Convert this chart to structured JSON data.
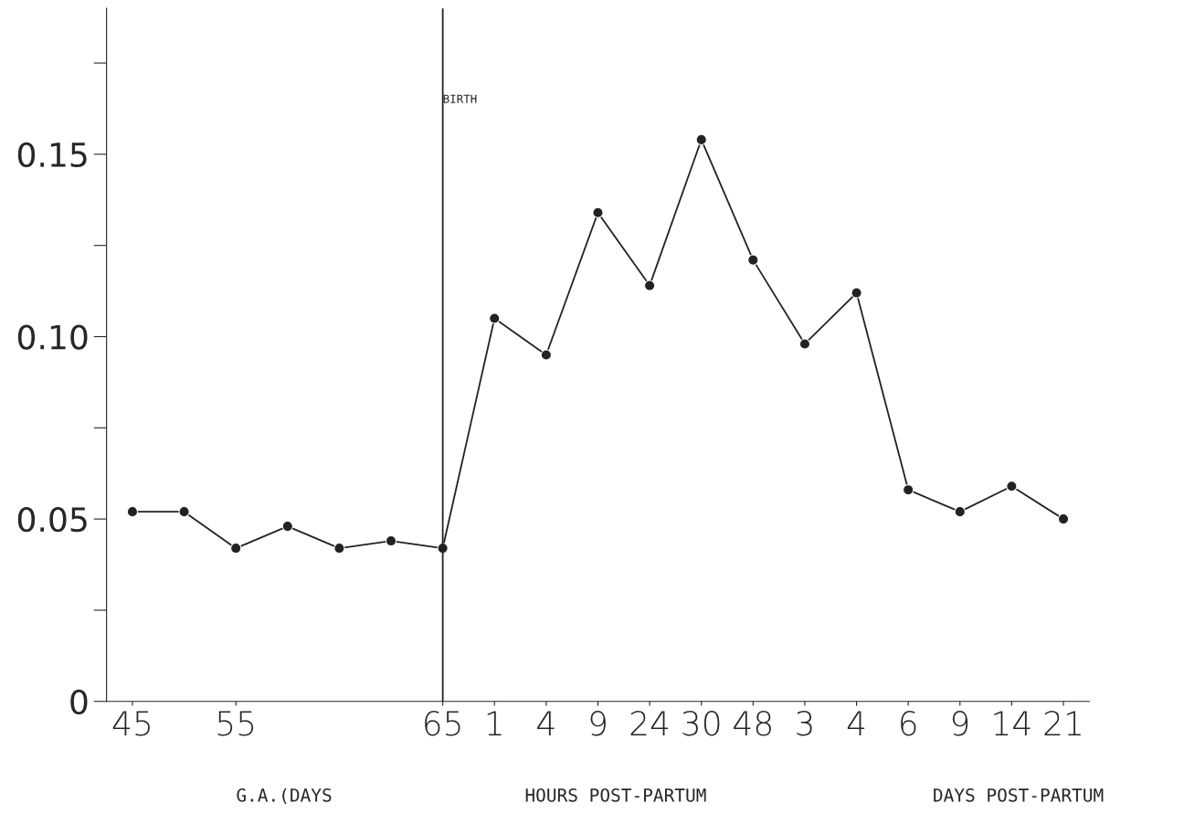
{
  "chart_data": {
    "type": "line",
    "categories": [
      "45",
      null,
      "55",
      null,
      null,
      null,
      "65",
      "1",
      "4",
      "9",
      "24",
      "30",
      "48",
      "3",
      "4",
      "6",
      "9",
      "14",
      "21"
    ],
    "series": [
      {
        "color": "#222222",
        "values": [
          0.052,
          0.052,
          0.042,
          0.048,
          0.042,
          0.044,
          0.042,
          0.105,
          0.095,
          0.134,
          0.114,
          0.154,
          0.121,
          0.098,
          0.112,
          0.058,
          0.052,
          0.059,
          0.05
        ]
      }
    ],
    "ylim": [
      0,
      0.19
    ],
    "yticks": [
      {
        "value": 0,
        "label": "0"
      },
      {
        "value": 0.025,
        "label": null
      },
      0.05,
      {
        "value": 0.075,
        "label": null
      },
      {
        "value": 0.1,
        "label": "0.10"
      },
      {
        "value": 0.125,
        "label": null
      },
      0.15,
      {
        "value": 0.175,
        "label": null
      }
    ],
    "ref_lines": [
      {
        "axis": "x",
        "value": "65",
        "label": "BIRTH",
        "color": "#222222"
      }
    ],
    "annotations": [
      "G.A.(DAYS",
      "HOURS POST-PARTUM",
      "DAYS POST-PARTUM"
    ],
    "marker": "circle",
    "line_style": "solid",
    "grid": false,
    "legend": false
  }
}
